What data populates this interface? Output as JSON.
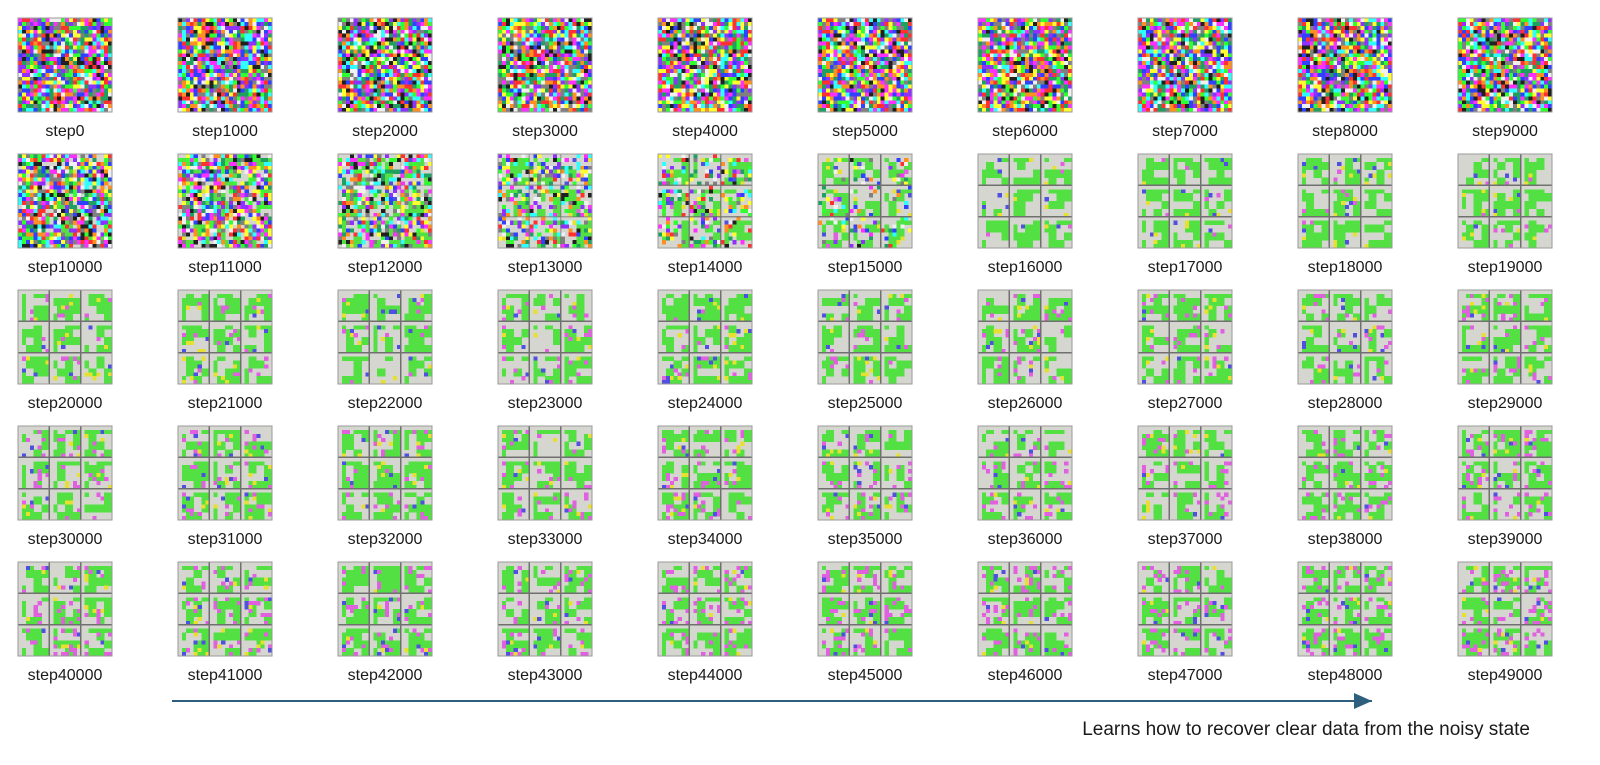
{
  "thumbnails": [
    "step0",
    "step1000",
    "step2000",
    "step3000",
    "step4000",
    "step5000",
    "step6000",
    "step7000",
    "step8000",
    "step9000",
    "step10000",
    "step11000",
    "step12000",
    "step13000",
    "step14000",
    "step15000",
    "step16000",
    "step17000",
    "step18000",
    "step19000",
    "step20000",
    "step21000",
    "step22000",
    "step23000",
    "step24000",
    "step25000",
    "step26000",
    "step27000",
    "step28000",
    "step29000",
    "step30000",
    "step31000",
    "step32000",
    "step33000",
    "step34000",
    "step35000",
    "step36000",
    "step37000",
    "step38000",
    "step39000",
    "step40000",
    "step41000",
    "step42000",
    "step43000",
    "step44000",
    "step45000",
    "step46000",
    "step47000",
    "step48000",
    "step49000"
  ],
  "caption": "Learns how to recover clear data from the noisy state"
}
